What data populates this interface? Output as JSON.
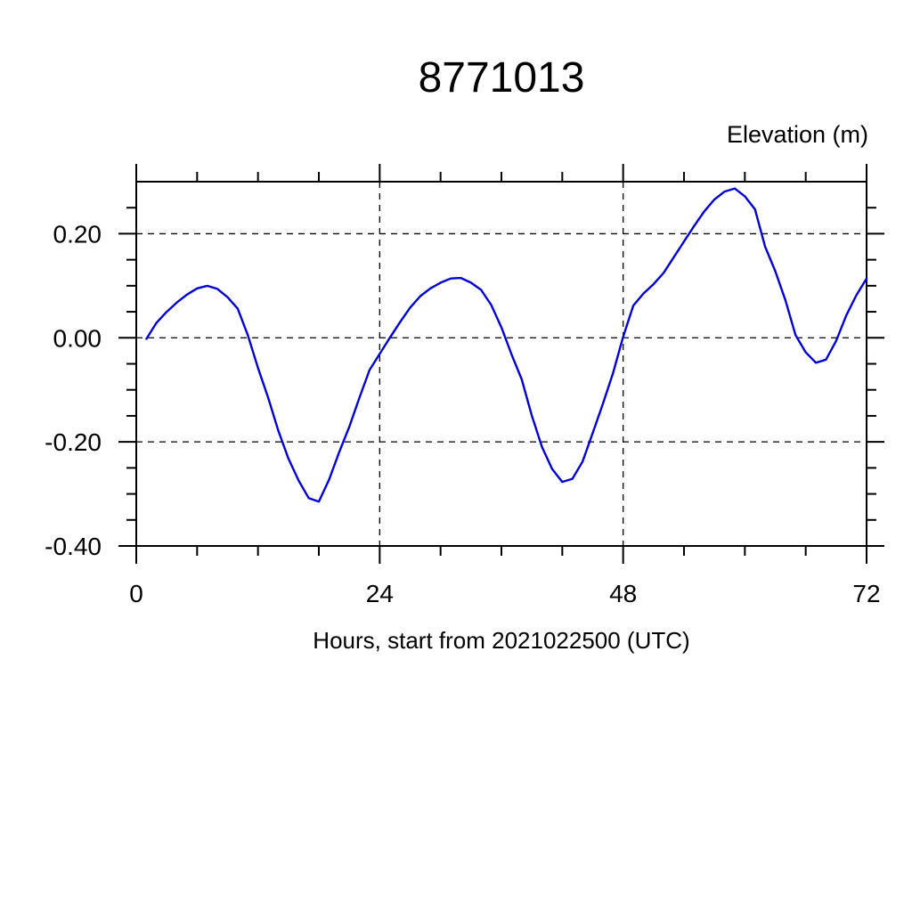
{
  "page": {
    "background": "#ffffff",
    "text_color": "#000000"
  },
  "chart_data": {
    "type": "line",
    "title": "8771013",
    "ylabel": "Elevation (m)",
    "xlabel": "Hours, start from 2021022500 (UTC)",
    "xlim": [
      0,
      72
    ],
    "ylim": [
      -0.4,
      0.3
    ],
    "x_ticks_major": [
      0,
      24,
      48,
      72
    ],
    "x_tick_labels": [
      "0",
      "24",
      "48",
      "72"
    ],
    "x_minor_step": 6,
    "y_ticks_major": [
      0.2,
      0.0,
      -0.2,
      -0.4
    ],
    "y_tick_labels": [
      "0.20",
      "0.00",
      "-0.20",
      "-0.40"
    ],
    "y_minor_step": 0.05,
    "grid": "dashed-at-major-ticks",
    "legend": "none",
    "axis_color": "#000000",
    "series": [
      {
        "name": "elevation",
        "color": "#0000dd",
        "x": [
          1,
          2,
          3,
          4,
          5,
          6,
          7,
          8,
          9,
          10,
          11,
          12,
          13,
          14,
          15,
          16,
          17,
          18,
          19,
          20,
          21,
          22,
          23,
          24,
          25,
          26,
          27,
          28,
          29,
          30,
          31,
          32,
          33,
          34,
          35,
          36,
          37,
          38,
          39,
          40,
          41,
          42,
          43,
          44,
          45,
          46,
          47,
          48,
          49,
          50,
          51,
          52,
          53,
          54,
          55,
          56,
          57,
          58,
          59,
          60,
          61,
          62,
          63,
          64,
          65,
          66,
          67,
          68,
          69,
          70,
          71,
          72
        ],
        "y": [
          -0.002,
          0.029,
          0.05,
          0.068,
          0.083,
          0.095,
          0.1,
          0.094,
          0.078,
          0.056,
          0.005,
          -0.058,
          -0.115,
          -0.178,
          -0.232,
          -0.274,
          -0.308,
          -0.315,
          -0.273,
          -0.22,
          -0.171,
          -0.115,
          -0.062,
          -0.031,
          0.0,
          0.03,
          0.058,
          0.08,
          0.095,
          0.106,
          0.114,
          0.115,
          0.106,
          0.092,
          0.063,
          0.02,
          -0.032,
          -0.08,
          -0.15,
          -0.21,
          -0.252,
          -0.277,
          -0.271,
          -0.238,
          -0.183,
          -0.127,
          -0.068,
          0.002,
          0.062,
          0.085,
          0.103,
          0.125,
          0.155,
          0.185,
          0.215,
          0.243,
          0.266,
          0.281,
          0.287,
          0.272,
          0.247,
          0.175,
          0.128,
          0.072,
          0.005,
          -0.028,
          -0.048,
          -0.042,
          -0.006,
          0.043,
          0.082,
          0.114
        ]
      }
    ]
  }
}
